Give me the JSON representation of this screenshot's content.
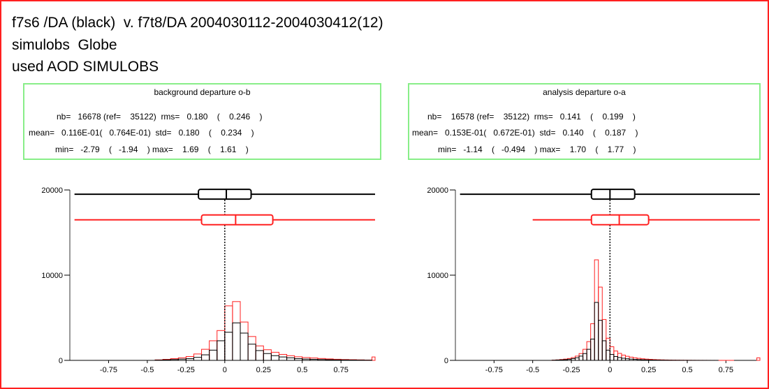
{
  "header": {
    "line1": "f7s6 /DA (black)  v. f7t8/DA 2004030112-2004030412(12)",
    "line2": "simulobs  Globe",
    "line3": "used AOD SIMULOBS"
  },
  "colors": {
    "frame": "#ff2020",
    "stats_border": "#88ee88",
    "series_black": "#000000",
    "series_red": "#ff2020"
  },
  "panels": [
    {
      "title": "background departure o-b",
      "stats": {
        "line1": "nb=   16678 (ref=    35122)  rms=   0.180    (    0.246    )",
        "line2": "mean=   0.116E-01(   0.764E-01)  std=   0.180    (    0.234    )",
        "line3": "min=   -2.79    (   -1.94    ) max=    1.69    (    1.61    )"
      }
    },
    {
      "title": "analysis departure o-a",
      "stats": {
        "line1": "nb=    16578 (ref=    35122)  rms=   0.141    (    0.199    )",
        "line2": "mean=   0.153E-01(   0.672E-01)  std=   0.140    (    0.187    )",
        "line3": "min=   -1.14    (   -0.494    ) max=    1.70    (    1.77    )"
      }
    }
  ],
  "chart_data": [
    {
      "type": "bar",
      "title": "background departure o-b",
      "xlim": [
        -1.0,
        0.97
      ],
      "ylim": [
        0,
        20000
      ],
      "y_ticks": [
        0,
        10000,
        20000
      ],
      "x_ticks": [
        -0.75,
        -0.5,
        -0.25,
        0,
        0.25,
        0.5,
        0.75
      ],
      "x_tick_labels": [
        "-0.75",
        "-0.5",
        "-0.25",
        "0",
        "0.25",
        "0.5",
        "0.75"
      ],
      "bin_width": 0.05,
      "bin_start": -0.5,
      "series": [
        {
          "color": "#000000",
          "values": [
            0,
            30,
            60,
            100,
            150,
            200,
            350,
            650,
            1200,
            2300,
            3300,
            4400,
            3200,
            1900,
            1150,
            800,
            550,
            400,
            300,
            200,
            150,
            120,
            100,
            80,
            60,
            50,
            40,
            30,
            20,
            0
          ]
        },
        {
          "color": "#ff2020",
          "values": [
            0,
            60,
            120,
            200,
            300,
            450,
            750,
            1300,
            2300,
            3500,
            6400,
            6900,
            4500,
            2800,
            1700,
            1250,
            950,
            700,
            550,
            420,
            330,
            280,
            220,
            170,
            130,
            100,
            80,
            60,
            40,
            400
          ]
        }
      ],
      "boxplots": [
        {
          "color": "#000000",
          "y": 19500,
          "whisker": [
            -0.97,
            0.97
          ],
          "box": [
            -0.17,
            0.17
          ],
          "median": 0.01
        },
        {
          "color": "#ff2020",
          "y": 16500,
          "whisker": [
            -0.97,
            0.97
          ],
          "box": [
            -0.15,
            0.31
          ],
          "median": 0.07
        }
      ]
    },
    {
      "type": "bar",
      "title": "analysis departure o-a",
      "xlim": [
        -1.0,
        0.97
      ],
      "ylim": [
        0,
        20000
      ],
      "y_ticks": [
        0,
        10000,
        20000
      ],
      "x_ticks": [
        -0.75,
        -0.5,
        -0.25,
        0,
        0.25,
        0.5,
        0.75
      ],
      "x_tick_labels": [
        "-0.75",
        "-0.5",
        "-0.25",
        "0",
        "0.25",
        "0.5",
        "0.75"
      ],
      "bin_width": 0.025,
      "bin_start": -0.4,
      "series": [
        {
          "color": "#000000",
          "values": [
            0,
            20,
            40,
            60,
            90,
            130,
            200,
            300,
            500,
            800,
            1300,
            2500,
            6800,
            4700,
            2300,
            1200,
            700,
            450,
            330,
            250,
            190,
            150,
            120,
            95,
            75,
            60,
            48,
            38,
            30,
            24,
            19,
            15,
            12,
            10,
            8,
            6,
            5,
            4,
            3,
            2,
            2,
            1,
            1,
            1,
            0,
            0,
            0,
            0,
            0,
            0,
            0,
            0,
            0,
            0,
            0
          ]
        },
        {
          "color": "#ff2020",
          "values": [
            0,
            30,
            60,
            100,
            150,
            220,
            330,
            500,
            800,
            1300,
            2200,
            4300,
            11800,
            8600,
            4800,
            2600,
            1600,
            1100,
            820,
            620,
            480,
            380,
            300,
            240,
            190,
            150,
            120,
            95,
            75,
            60,
            48,
            38,
            30,
            24,
            19,
            15,
            12,
            10,
            8,
            6,
            5,
            4,
            3,
            2,
            2,
            1,
            1,
            1,
            0,
            0,
            0,
            0,
            0,
            0,
            300
          ]
        }
      ],
      "boxplots": [
        {
          "color": "#000000",
          "y": 19500,
          "whisker": [
            -0.97,
            0.97
          ],
          "box": [
            -0.12,
            0.16
          ],
          "median": 0.0
        },
        {
          "color": "#ff2020",
          "y": 16500,
          "whisker": [
            -0.5,
            0.97
          ],
          "box": [
            -0.12,
            0.25
          ],
          "median": 0.06
        }
      ]
    }
  ]
}
